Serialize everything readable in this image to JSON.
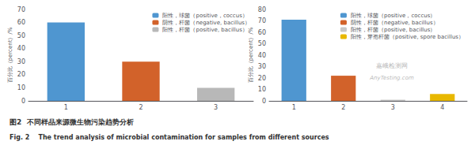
{
  "chart_data": [
    {
      "type": "bar",
      "categories": [
        "1",
        "2",
        "3"
      ],
      "ylabel": "百分比（percent）/%",
      "series": [
        {
          "name": "阳性，球菌（positive，coccus）",
          "color": "#4f96d0",
          "values": [
            60,
            null,
            null
          ]
        },
        {
          "name": "阴性，杆菌（negative, bacillus）",
          "color": "#d2622a",
          "values": [
            null,
            30,
            null
          ]
        },
        {
          "name": "阳性，杆菌（positive, bacillus）",
          "color": "#b8b8b8",
          "values": [
            null,
            null,
            10
          ]
        }
      ],
      "ylim": [
        0,
        70
      ],
      "yticks": [
        0,
        10,
        20,
        30,
        40,
        50,
        60,
        70
      ],
      "grid": false,
      "legend": "upper right"
    },
    {
      "type": "bar",
      "categories": [
        "1",
        "2",
        "3",
        "4"
      ],
      "ylabel": "百分比（percent）/%",
      "series": [
        {
          "name": "阳性，球菌（positive，coccus）",
          "color": "#4f96d0",
          "values": [
            71,
            null,
            null,
            null
          ]
        },
        {
          "name": "阴性，杆菌（negative, bacillus）",
          "color": "#d2622a",
          "values": [
            null,
            22,
            null,
            null
          ]
        },
        {
          "name": "阳性，杆菌（positive, bacillus）",
          "color": "#c8c8c8",
          "values": [
            null,
            null,
            1,
            null
          ]
        },
        {
          "name": "阳性，芽孢杆菌（positive, spore bacillus）",
          "color": "#e8b800",
          "values": [
            null,
            null,
            null,
            6
          ]
        }
      ],
      "ylim": [
        0,
        80
      ],
      "yticks": [
        0,
        10,
        20,
        30,
        40,
        50,
        60,
        70,
        80
      ],
      "grid": false,
      "legend": "upper right",
      "annotations": [
        "嘉峨检测网",
        "AnyTesting.com"
      ]
    }
  ],
  "captions": [
    "图2  不同样品来源微生物污染趋势分析",
    "Fig. 2    The trend analysis of microbial contamination for samples from different sources"
  ]
}
